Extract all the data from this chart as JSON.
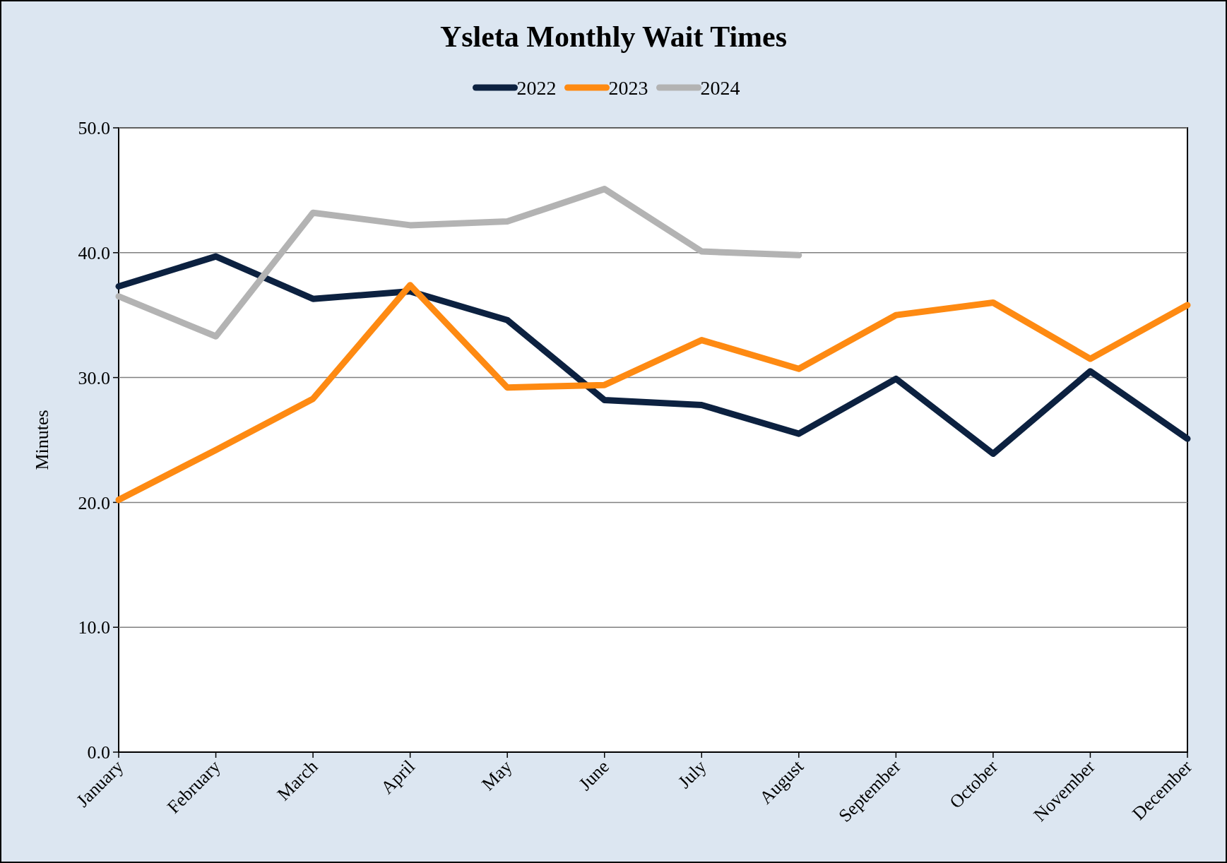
{
  "chart_data": {
    "type": "line",
    "title": "Ysleta Monthly Wait Times",
    "ylabel": "Minutes",
    "categories": [
      "January",
      "February",
      "March",
      "April",
      "May",
      "June",
      "July",
      "August",
      "September",
      "October",
      "November",
      "December"
    ],
    "series": [
      {
        "name": "2022",
        "color": "#0c2140",
        "values": [
          37.3,
          39.7,
          36.3,
          36.9,
          34.6,
          28.2,
          27.8,
          25.5,
          29.9,
          23.9,
          30.5,
          25.1
        ]
      },
      {
        "name": "2023",
        "color": "#fe8a12",
        "values": [
          20.2,
          24.2,
          28.3,
          37.4,
          29.2,
          29.4,
          33.0,
          30.7,
          35.0,
          36.0,
          31.5,
          35.8
        ]
      },
      {
        "name": "2024",
        "color": "#b3b3b3",
        "values": [
          36.5,
          33.3,
          43.2,
          42.2,
          42.5,
          45.1,
          40.1,
          39.8,
          null,
          null,
          null,
          null
        ]
      }
    ],
    "ylim": [
      0,
      50
    ],
    "yticks": [
      {
        "value": 0,
        "label": "0.0"
      },
      {
        "value": 10,
        "label": "10.0"
      },
      {
        "value": 20,
        "label": "20.0"
      },
      {
        "value": 30,
        "label": "30.0"
      },
      {
        "value": 40,
        "label": "40.0"
      },
      {
        "value": 50,
        "label": "50.0"
      }
    ],
    "grid": "y",
    "legend": "top",
    "marker": "none",
    "line_style": "solid"
  }
}
